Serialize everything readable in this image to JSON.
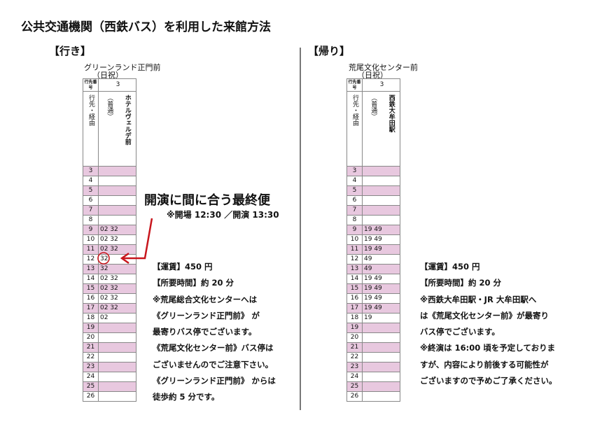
{
  "title": "公共交通機関（西鉄バス）を利用した来館方法",
  "outbound": {
    "heading": "【行き】",
    "stop": "グリーンランド正門前",
    "day": "（日祝）",
    "dest_no_label": "行先番号",
    "dest_no": "3",
    "dest_label": "行先・経由",
    "dest_type": "（普通）",
    "dest_name": "ホテルヴェルデ前",
    "rows": [
      [
        "3",
        ""
      ],
      [
        "4",
        ""
      ],
      [
        "5",
        ""
      ],
      [
        "6",
        ""
      ],
      [
        "7",
        ""
      ],
      [
        "8",
        ""
      ],
      [
        "9",
        "02 32"
      ],
      [
        "10",
        "02 32"
      ],
      [
        "11",
        "02 32"
      ],
      [
        "12",
        "32"
      ],
      [
        "13",
        "32"
      ],
      [
        "14",
        "02 32"
      ],
      [
        "15",
        "02 32"
      ],
      [
        "16",
        "02 32"
      ],
      [
        "17",
        "02 32"
      ],
      [
        "18",
        "02"
      ],
      [
        "19",
        ""
      ],
      [
        "20",
        ""
      ],
      [
        "21",
        ""
      ],
      [
        "22",
        ""
      ],
      [
        "23",
        ""
      ],
      [
        "24",
        ""
      ],
      [
        "25",
        ""
      ],
      [
        "26",
        ""
      ]
    ],
    "callout": "開演に間に合う最終便",
    "callout_sub": "※開場 12:30 ／開演 13:30",
    "notes": [
      "【運賃】450 円",
      "【所要時間】約 20 分",
      "※荒尾総合文化センターへは",
      "《グリーンランド正門前》 が",
      "最寄りバス停でございます。",
      "《荒尾文化センター前》バス停は",
      "ございませんのでご注意下さい。",
      "《グリーンランド正門前》 からは",
      "徒歩約 5 分です。"
    ]
  },
  "return": {
    "heading": "【帰り】",
    "stop": "荒尾文化センター前",
    "day": "（日祝）",
    "dest_no_label": "行先番号",
    "dest_no": "3",
    "dest_label": "行先・経由",
    "dest_type": "（普通）",
    "dest_name": "西鉄大牟田駅",
    "rows": [
      [
        "3",
        ""
      ],
      [
        "4",
        ""
      ],
      [
        "5",
        ""
      ],
      [
        "6",
        ""
      ],
      [
        "7",
        ""
      ],
      [
        "8",
        ""
      ],
      [
        "9",
        "19 49"
      ],
      [
        "10",
        "19 49"
      ],
      [
        "11",
        "19 49"
      ],
      [
        "12",
        "49"
      ],
      [
        "13",
        "49"
      ],
      [
        "14",
        "19 49"
      ],
      [
        "15",
        "19 49"
      ],
      [
        "16",
        "19 49"
      ],
      [
        "17",
        "19 49"
      ],
      [
        "18",
        "19"
      ],
      [
        "19",
        ""
      ],
      [
        "20",
        ""
      ],
      [
        "21",
        ""
      ],
      [
        "22",
        ""
      ],
      [
        "23",
        ""
      ],
      [
        "24",
        ""
      ],
      [
        "25",
        ""
      ],
      [
        "26",
        ""
      ]
    ],
    "notes": [
      "【運賃】450 円",
      "【所要時間】約 20 分",
      "※西鉄大牟田駅・JR 大牟田駅へ",
      "は《荒尾文化センター前》が最寄り",
      "バス停でございます。",
      "※終演は 16:00 頃を予定しておりま",
      "すが、内容により前後する可能性が",
      "ございますので予めご了承ください。"
    ]
  },
  "colors": {
    "pink": "#e8c8df",
    "accent": "#c8161d"
  }
}
